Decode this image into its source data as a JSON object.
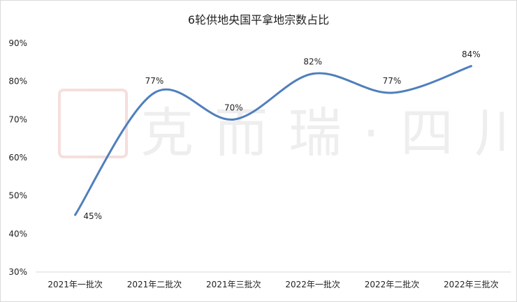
{
  "chart_data": {
    "type": "line",
    "title": "6轮供地央国平拿地宗数占比",
    "categories": [
      "2021年一批次",
      "2021年二批次",
      "2021年三批次",
      "2022年一批次",
      "2022年二批次",
      "2022年三批次"
    ],
    "series": [
      {
        "values": [
          45,
          77,
          70,
          82,
          77,
          84
        ],
        "labels": [
          "45%",
          "77%",
          "70%",
          "82%",
          "77%",
          "84%"
        ]
      }
    ],
    "ylim": [
      30,
      90
    ],
    "yticks": [
      "30%",
      "40%",
      "50%",
      "60%",
      "70%",
      "80%",
      "90%"
    ],
    "line_color": "#4f7fbd",
    "smooth": true,
    "grid": false,
    "legend": "none",
    "xlabel": "",
    "ylabel": ""
  },
  "watermark": {
    "text": "克而瑞·四川",
    "seal_color": "#c0392b"
  }
}
